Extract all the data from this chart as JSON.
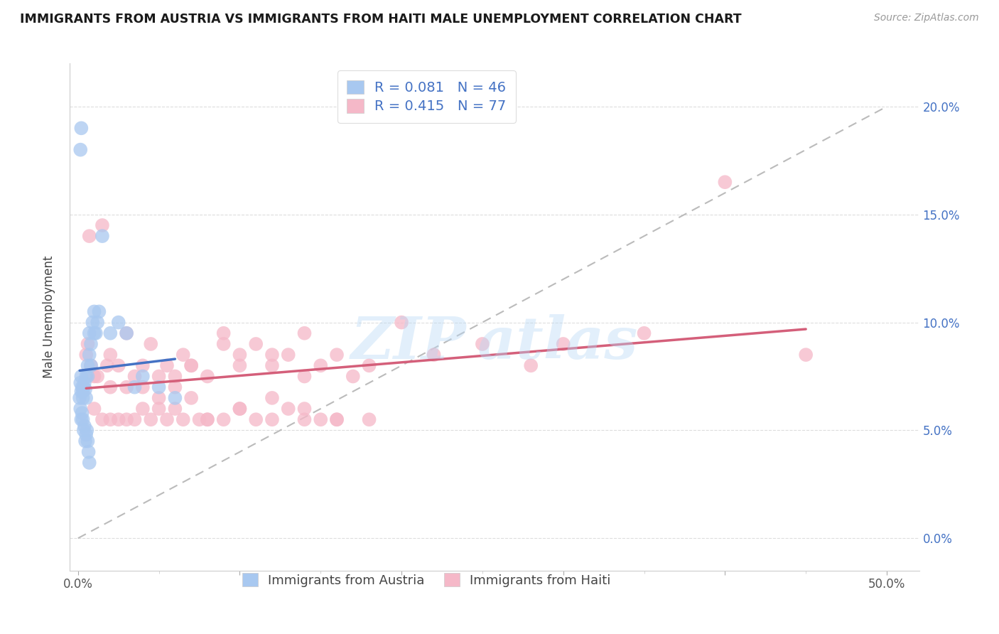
{
  "title": "IMMIGRANTS FROM AUSTRIA VS IMMIGRANTS FROM HAITI MALE UNEMPLOYMENT CORRELATION CHART",
  "source": "Source: ZipAtlas.com",
  "ylabel": "Male Unemployment",
  "x_ticks": [
    0.0,
    10.0,
    20.0,
    30.0,
    40.0,
    50.0
  ],
  "x_tick_labels": [
    "0.0%",
    "",
    "",
    "",
    "",
    "50.0%"
  ],
  "y_ticks": [
    0.0,
    5.0,
    10.0,
    15.0,
    20.0
  ],
  "y_tick_labels_right": [
    "0.0%",
    "5.0%",
    "10.0%",
    "15.0%",
    "20.0%"
  ],
  "xlim": [
    -0.5,
    52.0
  ],
  "ylim": [
    -1.5,
    22.0
  ],
  "austria_color": "#a8c8f0",
  "haiti_color": "#f5b8c8",
  "austria_line_color": "#4472c4",
  "haiti_line_color": "#d45f7a",
  "ref_line_color": "#bbbbbb",
  "austria_R": 0.081,
  "austria_N": 46,
  "haiti_R": 0.415,
  "haiti_N": 77,
  "legend_label_austria": "Immigrants from Austria",
  "legend_label_haiti": "Immigrants from Haiti",
  "austria_scatter_x": [
    0.1,
    0.2,
    0.15,
    0.2,
    0.25,
    0.3,
    0.35,
    0.3,
    0.4,
    0.45,
    0.5,
    0.5,
    0.6,
    0.6,
    0.7,
    0.7,
    0.8,
    0.9,
    0.8,
    1.0,
    1.0,
    1.1,
    1.2,
    1.3,
    1.5,
    2.0,
    2.5,
    3.0,
    0.15,
    0.2,
    0.25,
    0.3,
    0.35,
    0.4,
    0.45,
    0.5,
    0.55,
    0.6,
    0.65,
    0.7,
    3.5,
    4.0,
    5.0,
    6.0,
    0.15,
    0.2
  ],
  "austria_scatter_y": [
    6.5,
    6.8,
    7.2,
    7.5,
    7.0,
    6.5,
    7.0,
    6.8,
    7.2,
    6.9,
    7.5,
    6.5,
    8.0,
    7.5,
    9.5,
    8.5,
    9.0,
    10.0,
    8.0,
    10.5,
    9.5,
    9.5,
    10.0,
    10.5,
    14.0,
    9.5,
    10.0,
    9.5,
    6.0,
    5.5,
    5.8,
    5.5,
    5.0,
    5.2,
    4.5,
    4.8,
    5.0,
    4.5,
    4.0,
    3.5,
    7.0,
    7.5,
    7.0,
    6.5,
    18.0,
    19.0
  ],
  "haiti_scatter_x": [
    0.5,
    0.6,
    0.7,
    0.8,
    1.0,
    1.2,
    1.5,
    1.8,
    2.0,
    2.5,
    3.0,
    3.5,
    4.0,
    4.5,
    5.0,
    5.5,
    6.0,
    6.5,
    7.0,
    8.0,
    9.0,
    10.0,
    11.0,
    12.0,
    13.0,
    14.0,
    15.0,
    16.0,
    17.0,
    18.0,
    20.0,
    22.0,
    25.0,
    28.0,
    30.0,
    35.0,
    40.0,
    45.0,
    2.0,
    3.0,
    4.0,
    5.0,
    6.0,
    7.0,
    8.0,
    10.0,
    12.0,
    14.0,
    16.0,
    18.0,
    2.5,
    3.5,
    4.5,
    5.5,
    6.5,
    7.5,
    1.0,
    1.5,
    2.0,
    3.0,
    4.0,
    5.0,
    6.0,
    7.0,
    8.0,
    9.0,
    10.0,
    11.0,
    12.0,
    13.0,
    14.0,
    15.0,
    16.0,
    9.0,
    10.0,
    12.0,
    14.0
  ],
  "haiti_scatter_y": [
    8.5,
    9.0,
    14.0,
    8.0,
    7.5,
    7.5,
    14.5,
    8.0,
    8.5,
    8.0,
    9.5,
    7.5,
    7.0,
    9.0,
    7.5,
    8.0,
    7.5,
    8.5,
    8.0,
    7.5,
    9.5,
    8.5,
    9.0,
    8.0,
    8.5,
    7.5,
    8.0,
    8.5,
    7.5,
    8.0,
    10.0,
    8.5,
    9.0,
    8.0,
    9.0,
    9.5,
    16.5,
    8.5,
    7.0,
    7.0,
    8.0,
    6.5,
    7.0,
    8.0,
    5.5,
    6.0,
    6.5,
    5.5,
    5.5,
    5.5,
    5.5,
    5.5,
    5.5,
    5.5,
    5.5,
    5.5,
    6.0,
    5.5,
    5.5,
    5.5,
    6.0,
    6.0,
    6.0,
    6.5,
    5.5,
    5.5,
    6.0,
    5.5,
    5.5,
    6.0,
    6.0,
    5.5,
    5.5,
    9.0,
    8.0,
    8.5,
    9.5
  ]
}
